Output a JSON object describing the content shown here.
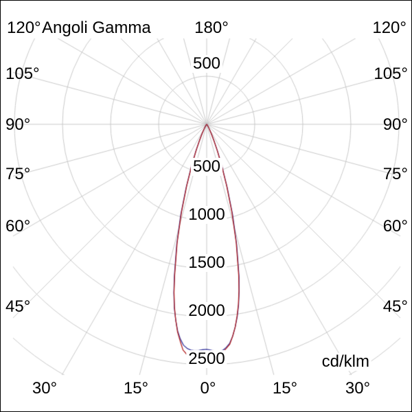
{
  "labels": {
    "title": "Angoli Gamma",
    "unit": "cd/klm",
    "top": [
      "120°",
      "180°",
      "120°"
    ],
    "left": [
      "105°",
      "90°",
      "75°",
      "60°",
      "45°"
    ],
    "right": [
      "105°",
      "90°",
      "75°",
      "60°",
      "45°"
    ],
    "bottom": [
      "30°",
      "15°",
      "0°",
      "15°",
      "30°"
    ],
    "radial_top": "500",
    "radial": [
      "500",
      "1000",
      "1500",
      "2000",
      "2500"
    ]
  },
  "colors": {
    "background": "#ffffff",
    "border": "#000000",
    "grid": "#c9c9c9",
    "text": "#000000",
    "curve_red": "#b22222",
    "curve_blue": "#3a3aa0"
  },
  "chart_data": {
    "type": "polar-photometric",
    "title": "Angoli Gamma",
    "unit": "cd/klm",
    "angle_axis": {
      "tick_step_deg": 15,
      "bottom_ticks_deg": [
        30,
        15,
        0,
        15,
        30
      ],
      "side_ticks_deg": [
        45,
        60,
        75,
        90,
        105,
        120
      ],
      "top_tick_deg": 180
    },
    "radial_axis": {
      "ticks_cd_klm": [
        500,
        1000,
        1500,
        2000,
        2500
      ],
      "ring_step": 500
    },
    "gamma_deg": [
      -90,
      -75,
      -60,
      -50,
      -45,
      -40,
      -35,
      -30,
      -28,
      -26,
      -24,
      -22,
      -20,
      -18,
      -16,
      -14,
      -12,
      -11,
      -10,
      -9,
      -8,
      -7,
      -6,
      -5,
      -4,
      -3,
      -2,
      -1,
      0,
      1,
      2,
      3,
      4,
      5,
      6,
      7,
      8,
      9,
      10,
      11,
      12,
      14,
      16,
      18,
      20,
      22,
      24,
      26,
      28,
      30,
      35,
      40,
      45,
      50,
      60,
      75,
      90
    ],
    "series": [
      {
        "name": "curve-blue",
        "color_key": "curve_blue",
        "values": [
          1,
          2,
          3,
          4,
          5,
          8,
          16,
          44,
          70,
          112,
          185,
          300,
          460,
          690,
          980,
          1290,
          1620,
          1790,
          1940,
          2060,
          2170,
          2250,
          2310,
          2340,
          2355,
          2360,
          2355,
          2345,
          2340,
          2350,
          2365,
          2370,
          2360,
          2330,
          2290,
          2220,
          2130,
          2030,
          1910,
          1770,
          1620,
          1290,
          980,
          690,
          460,
          300,
          185,
          115,
          72,
          46,
          17,
          9,
          5,
          4,
          3,
          2,
          1
        ]
      },
      {
        "name": "curve-red",
        "color_key": "curve_red",
        "values": [
          1,
          2,
          3,
          4,
          6,
          9,
          18,
          45,
          70,
          110,
          180,
          290,
          450,
          670,
          950,
          1270,
          1600,
          1780,
          1930,
          2060,
          2180,
          2270,
          2360,
          2400,
          2430,
          2425,
          2420,
          2400,
          2380,
          2385,
          2390,
          2385,
          2380,
          2340,
          2300,
          2220,
          2130,
          2020,
          1900,
          1760,
          1600,
          1270,
          950,
          670,
          450,
          290,
          180,
          110,
          70,
          45,
          18,
          9,
          6,
          4,
          3,
          2,
          1
        ]
      }
    ]
  }
}
